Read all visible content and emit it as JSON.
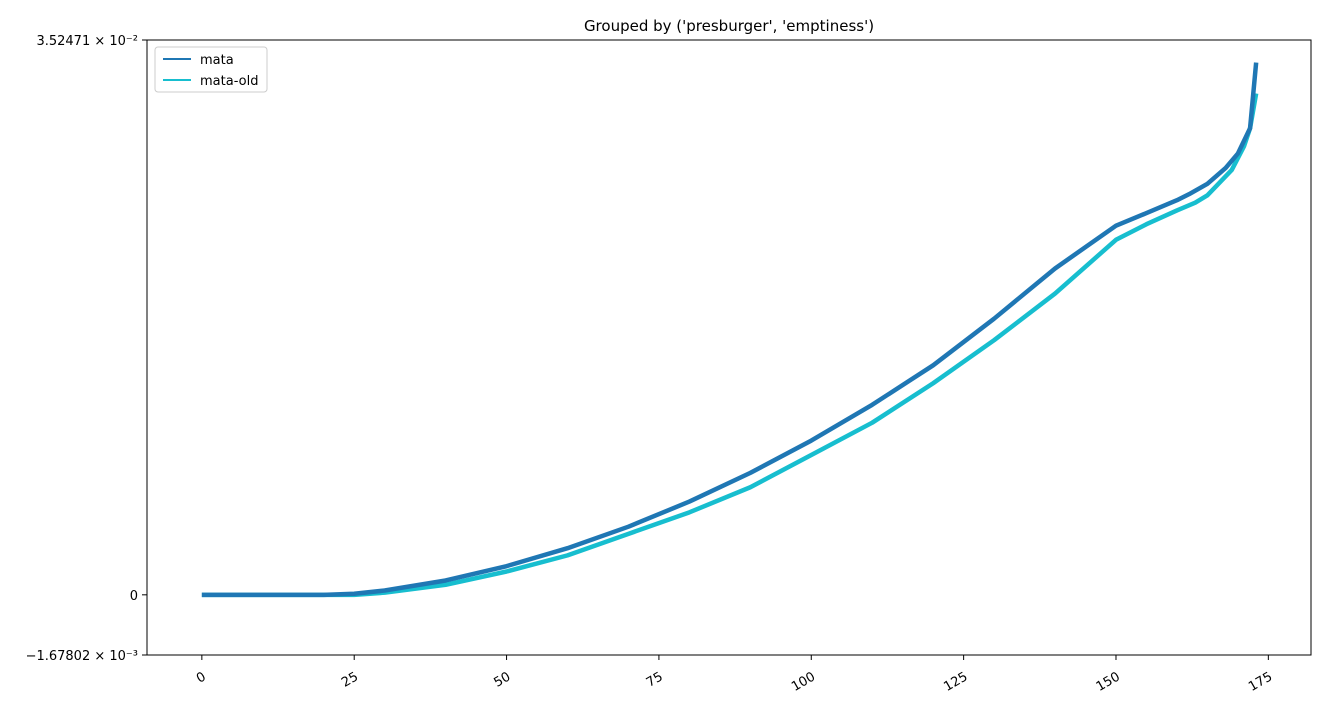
{
  "chart_data": {
    "type": "line",
    "title": "Grouped by ('presburger', 'emptiness')",
    "xlabel": "",
    "ylabel": "",
    "xlim": [
      -9,
      182
    ],
    "ylim": [
      -0.00167802,
      0.0352471
    ],
    "y_scale": "symlog",
    "x_ticks": [
      0,
      25,
      50,
      75,
      100,
      125,
      150,
      175
    ],
    "x_tick_labels": [
      "0",
      "25",
      "50",
      "75",
      "100",
      "125",
      "150",
      "175"
    ],
    "y_tick_labels": {
      "top": "3.52471 × 10⁻²",
      "zero": "0",
      "bottom": "−1.67802 × 10⁻³"
    },
    "grid": false,
    "legend_position": "top-left",
    "series": [
      {
        "name": "mata",
        "color": "#1f77b4",
        "x": [
          0,
          10,
          20,
          25,
          30,
          40,
          50,
          60,
          70,
          80,
          90,
          100,
          110,
          120,
          130,
          140,
          150,
          155,
          160,
          162,
          165,
          168,
          170,
          172,
          173
        ],
        "y": [
          0,
          0,
          0,
          3e-05,
          0.00012,
          0.0004,
          0.0008,
          0.0013,
          0.0019,
          0.0026,
          0.0034,
          0.0043,
          0.0053,
          0.0064,
          0.0077,
          0.0091,
          0.0107,
          0.0116,
          0.0126,
          0.0131,
          0.014,
          0.0155,
          0.017,
          0.02,
          0.0305
        ]
      },
      {
        "name": "mata-old",
        "color": "#17becf",
        "x": [
          0,
          10,
          20,
          25,
          30,
          40,
          50,
          60,
          70,
          80,
          90,
          100,
          110,
          120,
          130,
          140,
          150,
          155,
          160,
          163,
          165,
          169,
          171,
          172,
          173
        ],
        "y": [
          0,
          0,
          0,
          0,
          6e-05,
          0.00028,
          0.00065,
          0.0011,
          0.0017,
          0.0023,
          0.003,
          0.0039,
          0.0048,
          0.0059,
          0.0071,
          0.0084,
          0.0099,
          0.0108,
          0.0118,
          0.0124,
          0.013,
          0.0153,
          0.0178,
          0.02,
          0.025
        ]
      }
    ]
  }
}
